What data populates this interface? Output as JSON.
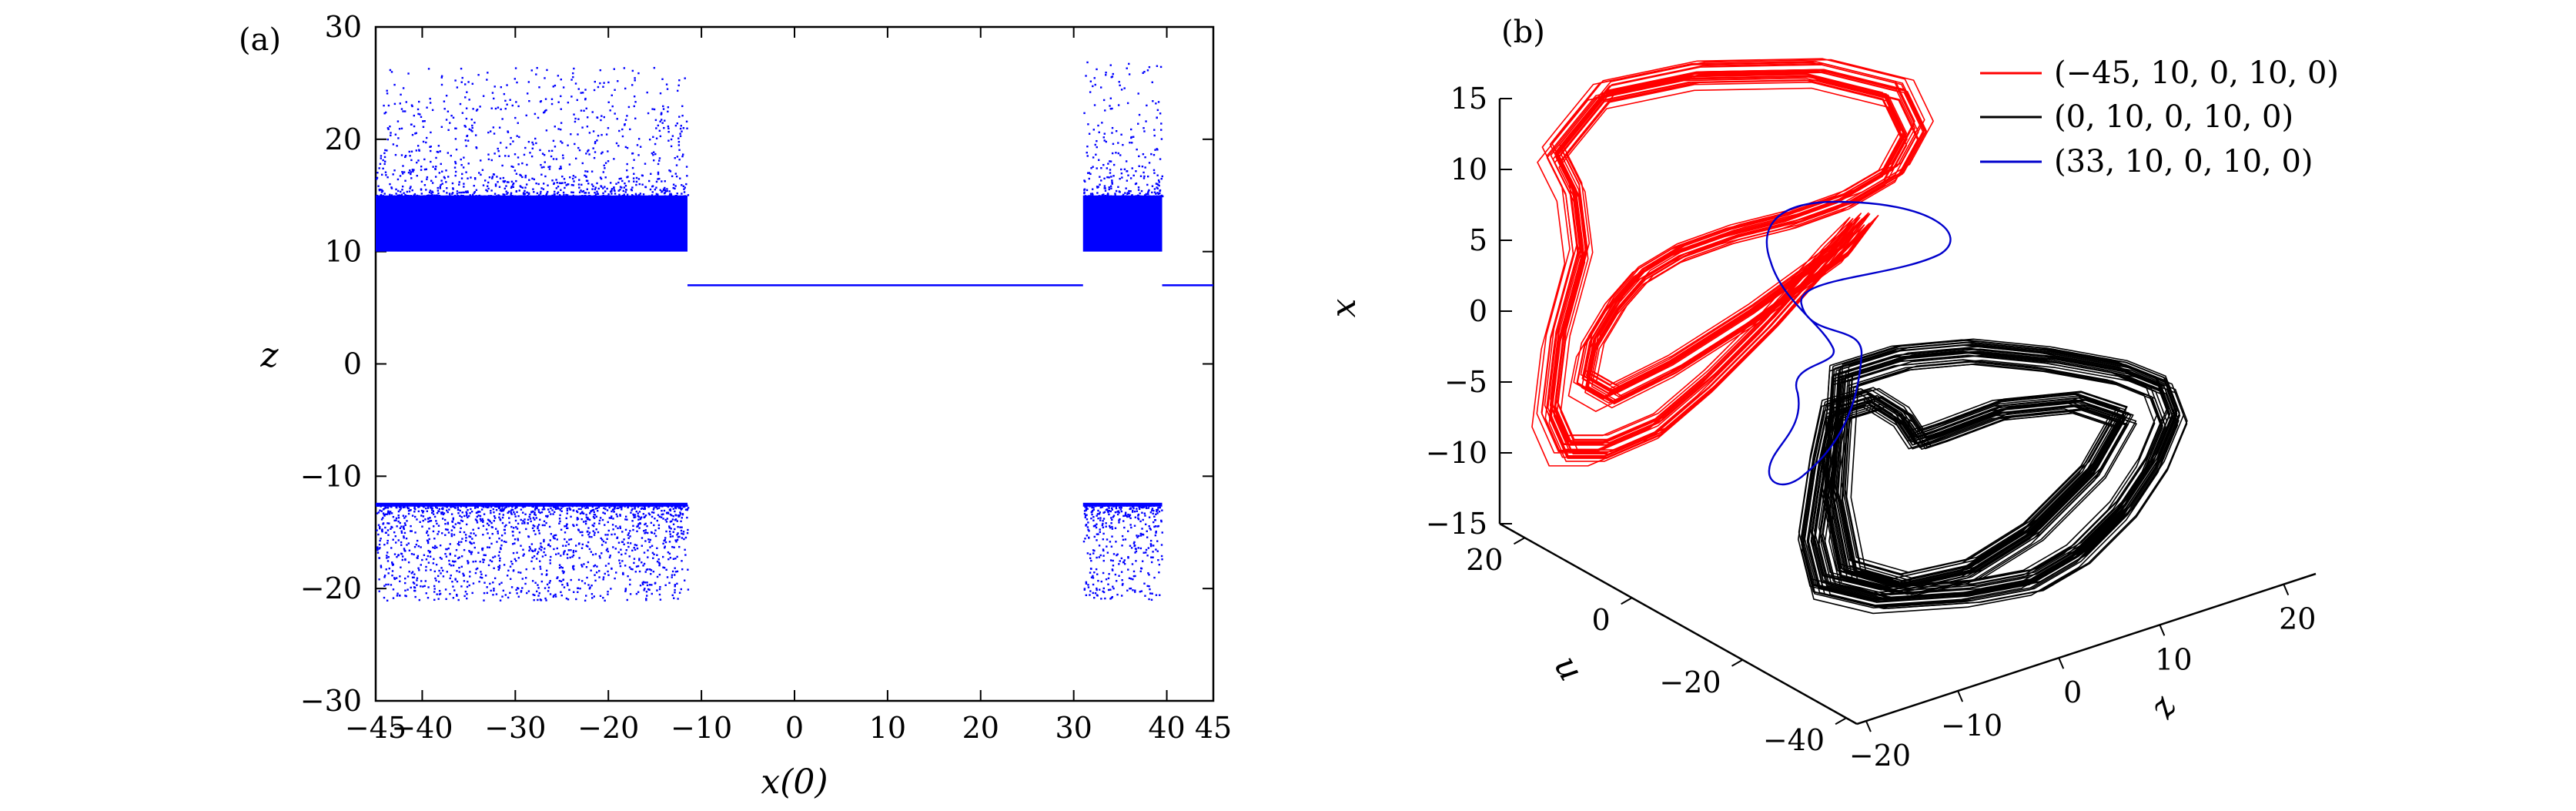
{
  "chart_data": [
    {
      "panel_label": "(a)",
      "type": "scatter",
      "xlabel": "x(0)",
      "ylabel": "z",
      "xlim": [
        -45,
        45
      ],
      "ylim": [
        -30,
        30
      ],
      "xticks": [
        -45,
        -40,
        -30,
        -20,
        -10,
        0,
        10,
        20,
        30,
        40,
        45
      ],
      "yticks": [
        -30,
        -20,
        -10,
        0,
        10,
        20,
        30
      ],
      "xtick_labels": [
        "−45",
        "−40",
        "−30",
        "−20",
        "−10",
        "0",
        "10",
        "20",
        "30",
        "40",
        "45"
      ],
      "ytick_labels": [
        "−30",
        "−20",
        "−10",
        "0",
        "10",
        "20",
        "30"
      ],
      "color": "#0000ff",
      "chaotic_regions": [
        {
          "x_range": [
            -45,
            -11.5
          ],
          "upper_band": [
            10,
            15
          ],
          "upper_sparse_max": 26.5,
          "lower_band": [
            -12.5,
            -14.5
          ],
          "lower_sparse_min": -21
        },
        {
          "x_range": [
            31,
            39.5
          ],
          "upper_band": [
            10,
            15
          ],
          "upper_sparse_max": 27,
          "lower_band": [
            -12.5,
            -14.5
          ],
          "lower_sparse_min": -21
        }
      ],
      "periodic_segments": [
        {
          "x_range": [
            -11.5,
            31
          ],
          "z": 7
        },
        {
          "x_range": [
            39.5,
            45
          ],
          "z": 7
        }
      ]
    },
    {
      "panel_label": "(b)",
      "type": "line",
      "axis_labels": {
        "x": "x",
        "u": "u",
        "z": "z"
      },
      "x_ticks": [
        "15",
        "10",
        "5",
        "0",
        "−5",
        "−10",
        "−15"
      ],
      "u_ticks": [
        "20",
        "0",
        "−20",
        "−40"
      ],
      "z_ticks": [
        "−20",
        "−10",
        "0",
        "10",
        "20"
      ],
      "legend_position": "top-right",
      "series": [
        {
          "name": "(−45, 10, 0, 10, 0)",
          "color": "#ff0000"
        },
        {
          "name": "(0, 10, 0, 10, 0)",
          "color": "#000000"
        },
        {
          "name": "(33, 10, 0, 10, 0)",
          "color": "#0000cc"
        }
      ]
    }
  ]
}
